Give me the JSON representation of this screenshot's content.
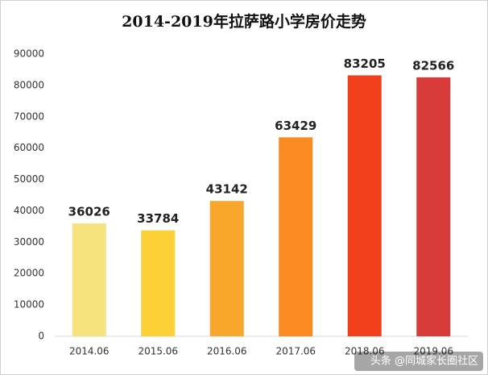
{
  "chart_data": {
    "type": "bar",
    "title": "2014-2019年拉萨路小学房价走势",
    "categories": [
      "2014.06",
      "2015.06",
      "2016.06",
      "2017.06",
      "2018.06",
      "2019.06"
    ],
    "values": [
      36026,
      33784,
      43142,
      63429,
      83205,
      82566
    ],
    "colors": [
      "#f6e27f",
      "#fdd038",
      "#f9a62c",
      "#fa8a22",
      "#f2401c",
      "#d93b3b"
    ],
    "ylim": [
      0,
      90000
    ],
    "yticks": [
      0,
      10000,
      20000,
      30000,
      40000,
      50000,
      60000,
      70000,
      80000,
      90000
    ],
    "grid": false,
    "annotation": "头条 @同城家长圈社区"
  }
}
